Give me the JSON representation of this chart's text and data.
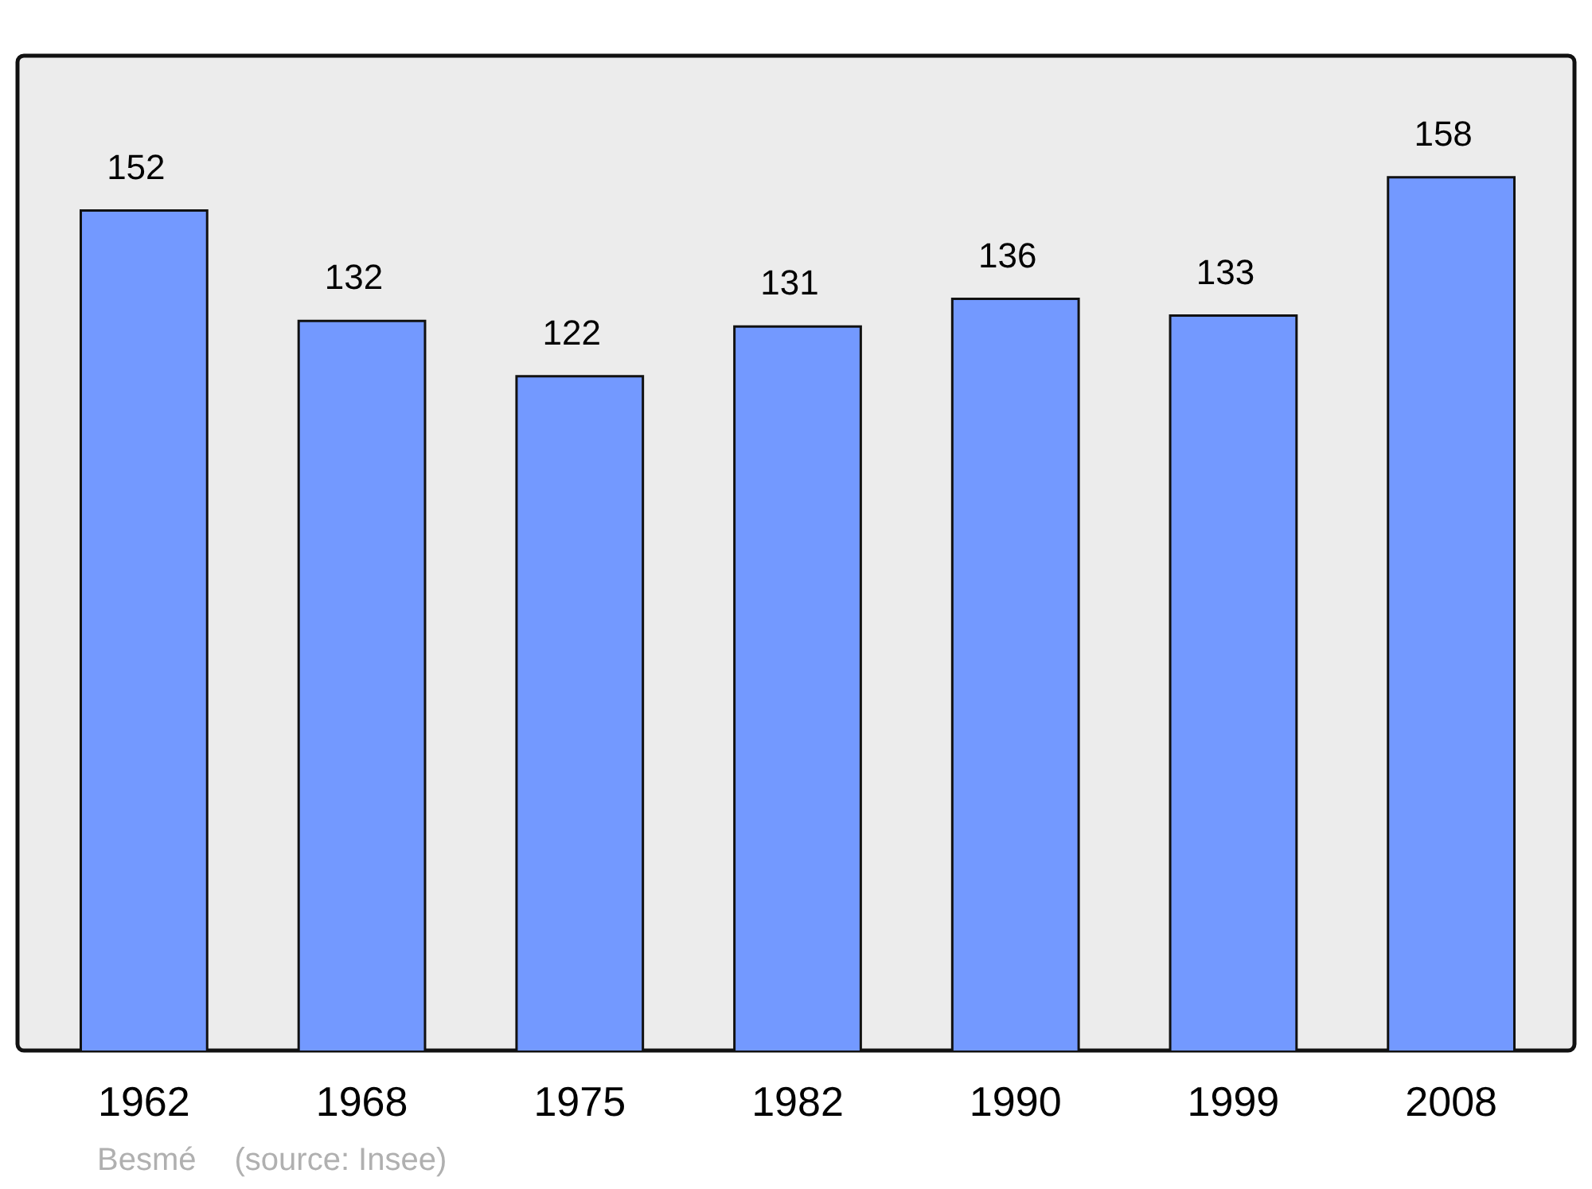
{
  "chart_data": {
    "type": "bar",
    "categories": [
      "1962",
      "1968",
      "1975",
      "1982",
      "1990",
      "1999",
      "2008"
    ],
    "values": [
      152,
      132,
      122,
      131,
      136,
      133,
      158
    ],
    "color": "#7399ff",
    "data_labels": true,
    "grid": false,
    "legend": false,
    "tick_labels": "x",
    "annotations": [
      "Besmé",
      "(source: Insee)"
    ]
  }
}
